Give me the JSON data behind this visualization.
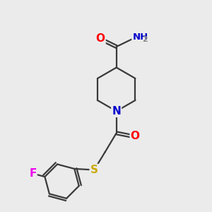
{
  "bg_color": "#ebebeb",
  "bond_color": "#3a3a3a",
  "bond_width": 1.6,
  "atom_colors": {
    "O": "#ff0000",
    "N": "#0000cc",
    "S": "#ccaa00",
    "F": "#ee00ee",
    "C": "#3a3a3a",
    "H": "#888888"
  },
  "font_size": 9.5,
  "fig_size": [
    3.0,
    3.0
  ],
  "dpi": 100,
  "xlim": [
    0,
    10
  ],
  "ylim": [
    0,
    10
  ]
}
